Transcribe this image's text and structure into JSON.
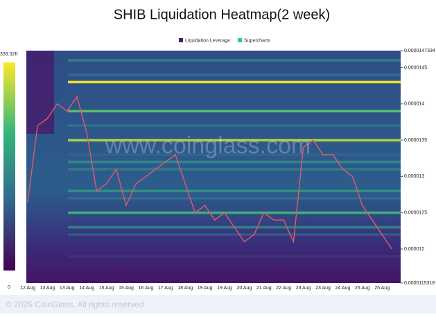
{
  "chart_data": {
    "type": "heatmap",
    "title": "SHIB Liquidation Heatmap(2 week)",
    "watermark": "www.coinglass.com",
    "footer": "© 2025 CoinGlass, All rights reserved",
    "categories": [
      "12 Aug",
      null,
      "13 Aug",
      null,
      "13 Aug",
      null,
      "14 Aug",
      null,
      "15 Aug",
      null,
      "15 Aug",
      null,
      "16 Aug",
      null,
      "17 Aug",
      null,
      "18 Aug",
      null,
      "19 Aug",
      null,
      "19 Aug",
      null,
      "20 Aug",
      null,
      "21 Aug",
      null,
      "22 Aug",
      null,
      "23 Aug",
      null,
      "23 Aug",
      null,
      "24 Aug",
      null,
      "25 Aug",
      null,
      "25 Aug",
      null
    ],
    "series": [
      {
        "name": "Liquidation Leverage",
        "color": "#4a1a6e",
        "values": null
      },
      {
        "name": "Supercharts",
        "color": "#2cc6a4",
        "values": [
          1.265e-05,
          1.37e-05,
          1.38e-05,
          1.4e-05,
          1.39e-05,
          1.41e-05,
          1.36e-05,
          1.28e-05,
          1.29e-05,
          1.31e-05,
          1.26e-05,
          1.29e-05,
          1.3e-05,
          1.31e-05,
          1.32e-05,
          1.33e-05,
          1.29e-05,
          1.25e-05,
          1.26e-05,
          1.24e-05,
          1.25e-05,
          1.23e-05,
          1.21e-05,
          1.22e-05,
          1.25e-05,
          1.24e-05,
          1.24e-05,
          1.21e-05,
          1.34e-05,
          1.35e-05,
          1.33e-05,
          1.33e-05,
          1.31e-05,
          1.3e-05,
          1.26e-05,
          1.24e-05,
          1.22e-05,
          1.2e-05
        ]
      }
    ],
    "line_color": "#e8586a",
    "heatmap": {
      "prices": [
        1.46e-05,
        1.44e-05,
        1.43e-05,
        1.41e-05,
        1.39e-05,
        1.37e-05,
        1.35e-05,
        1.33e-05,
        1.32e-05,
        1.31e-05,
        1.28e-05,
        1.27e-05,
        1.25e-05,
        1.23e-05,
        1.22e-05,
        1.19e-05
      ],
      "values": [
        150000,
        120000,
        339320,
        90000,
        250000,
        130000,
        300000,
        110000,
        160000,
        140000,
        170000,
        120000,
        230000,
        150000,
        100000,
        60000
      ]
    },
    "colorscale": [
      "#440154",
      "#31688e",
      "#35b779",
      "#fde725"
    ],
    "zlim": [
      0,
      339320
    ],
    "zticks": [
      {
        "value": 339320,
        "label": "339.32K"
      },
      0
    ],
    "ylim": [
      1.15318e-05,
      1.47334e-05
    ],
    "yticks": [
      1.47334e-05,
      1.45e-05,
      1.4e-05,
      1.35e-05,
      1.3e-05,
      1.25e-05,
      1.2e-05,
      1.15318e-05
    ]
  }
}
